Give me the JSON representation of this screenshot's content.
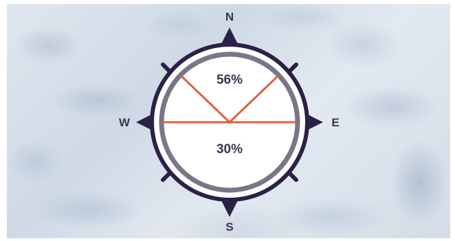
{
  "compass": {
    "north": "N",
    "south": "S",
    "east": "E",
    "west": "W"
  },
  "segments": {
    "upper_label": "56%",
    "lower_label": "30%"
  },
  "colors": {
    "navy": "#2a2149",
    "ring_gray": "#7b7589",
    "accent_orange": "#e0603a",
    "text": "#3b3550"
  },
  "icons": {
    "compass": "compass-rose-icon"
  }
}
